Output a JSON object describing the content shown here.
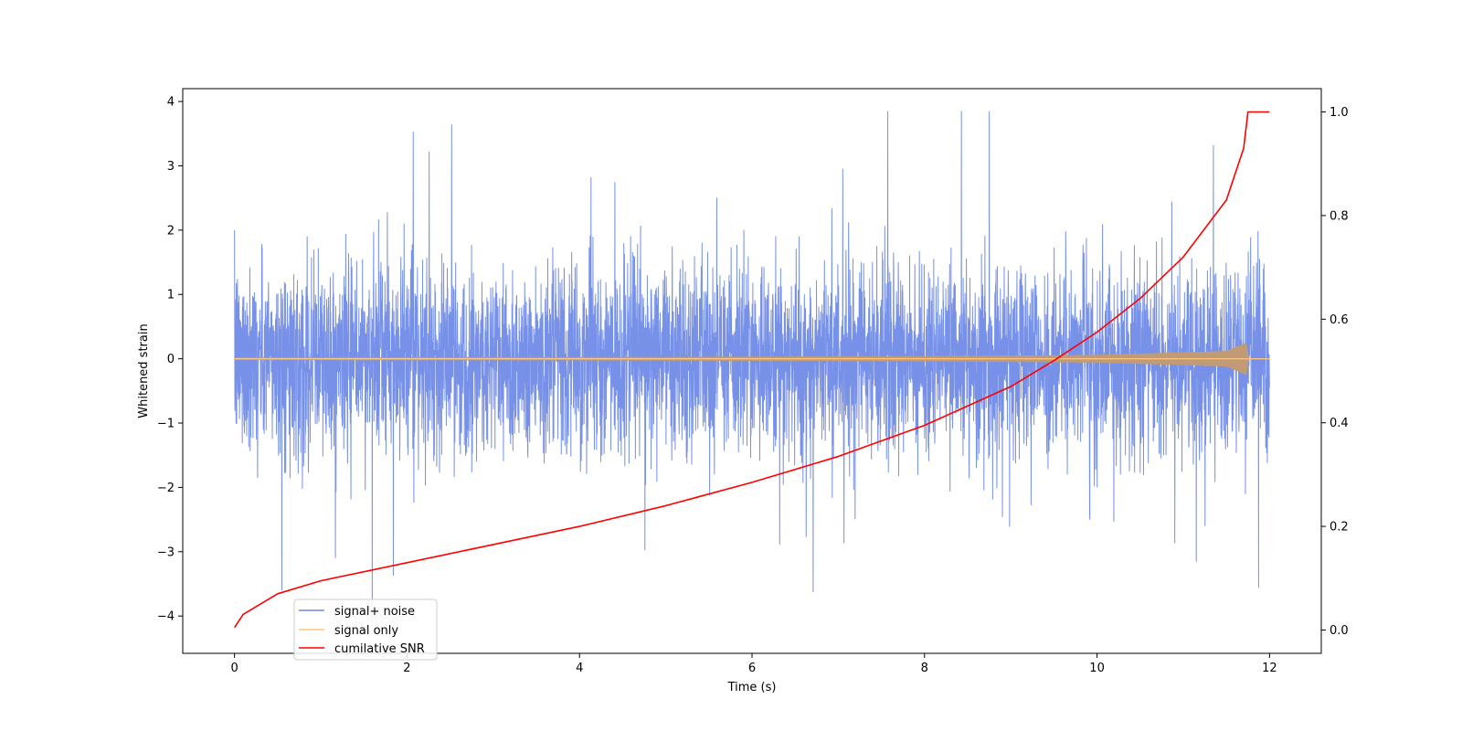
{
  "chart_data": {
    "type": "line",
    "title": "",
    "xlabel": "Time (s)",
    "ylabel": "Whitened strain",
    "y2label": "",
    "xlim": [
      -0.6,
      12.6
    ],
    "ylim": [
      -4.58,
      4.2
    ],
    "y2lim": [
      -0.045,
      1.045
    ],
    "x_ticks": [
      0,
      2,
      4,
      6,
      8,
      10,
      12
    ],
    "y_ticks": [
      -4,
      -3,
      -2,
      -1,
      0,
      1,
      2,
      3,
      4
    ],
    "y2_ticks": [
      0.0,
      0.2,
      0.4,
      0.6,
      0.8,
      1.0
    ],
    "x_tick_labels": [
      "0",
      "2",
      "4",
      "6",
      "8",
      "10",
      "12"
    ],
    "y_tick_labels": [
      "−4",
      "−3",
      "−2",
      "−1",
      "0",
      "1",
      "2",
      "3",
      "4"
    ],
    "y2_tick_labels": [
      "0.0",
      "0.2",
      "0.4",
      "0.6",
      "0.8",
      "1.0"
    ],
    "grid": false,
    "legend_position": "lower-left",
    "duration_s": 12,
    "merger_time_s": 11.75,
    "series": [
      {
        "name": "signal+ noise",
        "color": "#6b88e6",
        "axis": "left",
        "description_values": {
          "typical_range": [
            -1.6,
            1.6
          ],
          "max": 3.8,
          "min": -3.8
        }
      },
      {
        "name": "signal only",
        "color": "#ffc680",
        "axis": "left",
        "envelope": [
          {
            "x": 0,
            "amp": 0.02
          },
          {
            "x": 4,
            "amp": 0.025
          },
          {
            "x": 8,
            "amp": 0.04
          },
          {
            "x": 10,
            "amp": 0.06
          },
          {
            "x": 11.5,
            "amp": 0.12
          },
          {
            "x": 11.73,
            "amp": 0.25
          },
          {
            "x": 11.76,
            "amp": 0.0
          },
          {
            "x": 12,
            "amp": 0.0
          }
        ]
      },
      {
        "name": "cumilative SNR",
        "color": "#ff0000",
        "axis": "right",
        "x": [
          0,
          0.1,
          0.5,
          1,
          2,
          3,
          4,
          5,
          6,
          7,
          8,
          9,
          9.5,
          10,
          10.5,
          11,
          11.5,
          11.7,
          11.75,
          12
        ],
        "y": [
          0.005,
          0.03,
          0.07,
          0.095,
          0.13,
          0.165,
          0.2,
          0.24,
          0.285,
          0.335,
          0.395,
          0.47,
          0.52,
          0.575,
          0.64,
          0.72,
          0.83,
          0.93,
          1.0,
          1.0
        ]
      }
    ]
  }
}
